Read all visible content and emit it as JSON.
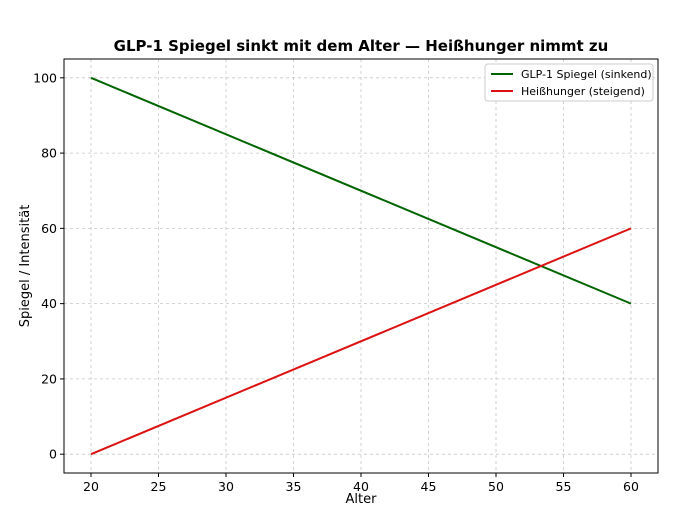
{
  "chart_data": {
    "type": "line",
    "title": "GLP-1 Spiegel sinkt mit dem Alter — Heißhunger nimmt zu",
    "xlabel": "Alter",
    "ylabel": "Spiegel / Intensität",
    "x": [
      20,
      60
    ],
    "xlim": [
      18,
      62
    ],
    "ylim": [
      -5,
      105
    ],
    "xticks": [
      20,
      25,
      30,
      35,
      40,
      45,
      50,
      55,
      60
    ],
    "yticks": [
      0,
      20,
      40,
      60,
      80,
      100
    ],
    "grid": true,
    "legend_position": "top-right",
    "series": [
      {
        "name": "GLP-1 Spiegel (sinkend)",
        "color": "#006400",
        "values": [
          100,
          40
        ]
      },
      {
        "name": "Heißhunger (steigend)",
        "color": "#dd1111",
        "values": [
          0,
          60
        ]
      }
    ]
  }
}
